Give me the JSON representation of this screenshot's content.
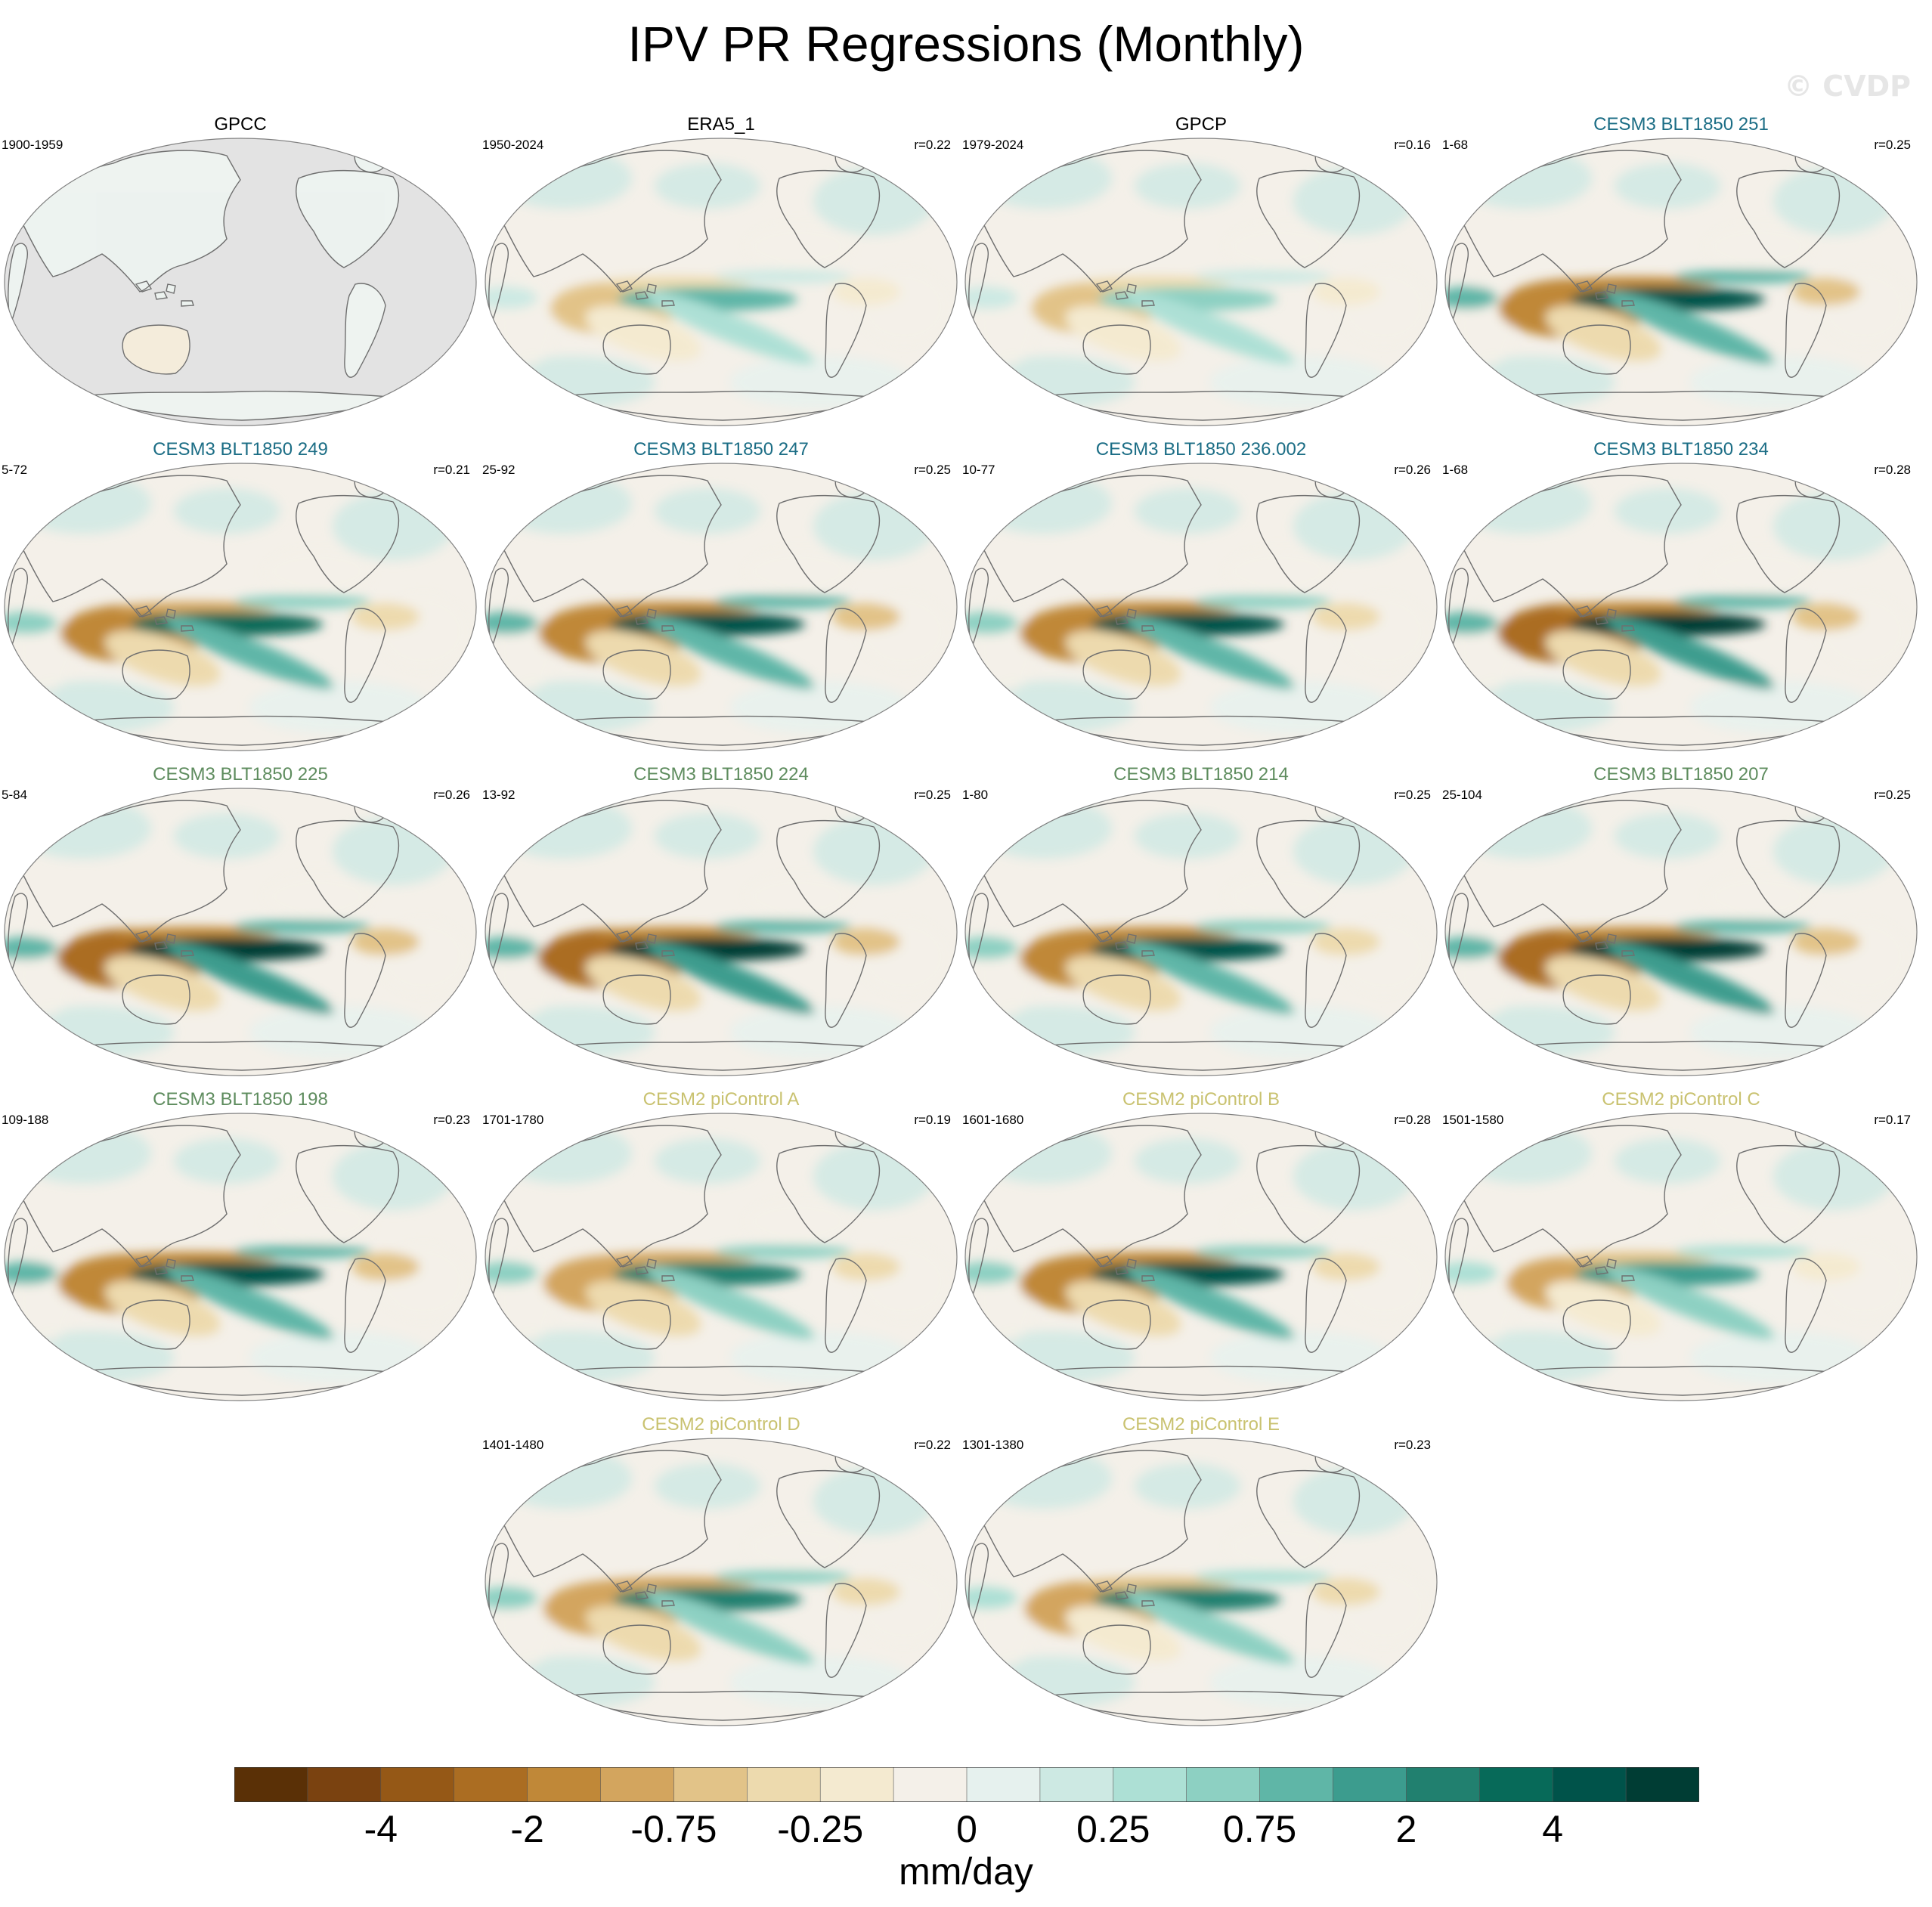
{
  "title": "IPV PR Regressions (Monthly)",
  "watermark": "© CVDP",
  "units": "mm/day",
  "colors": {
    "obs_title": "#000000",
    "cesm3_blue": "#1b6d85",
    "cesm3_green": "#5e8c5e",
    "cesm2_yellow": "#c9c270",
    "land_missing": "#e3e3e3"
  },
  "chart_data": {
    "type": "heatmap",
    "projection": "robinson (Pacific-centered)",
    "variable": "PR regression onto IPV",
    "colorbar": {
      "ticks": [
        "-4",
        "-2",
        "-0.75",
        "-0.25",
        "0",
        "0.25",
        "0.75",
        "2",
        "4"
      ],
      "levels": [
        -5,
        -4,
        -3,
        -2,
        -1,
        -0.75,
        -0.5,
        -0.25,
        -0.1,
        0,
        0.1,
        0.25,
        0.5,
        0.75,
        1,
        2,
        3,
        4,
        5
      ],
      "colors": [
        "#5a3006",
        "#7a4210",
        "#955816",
        "#ab6d22",
        "#c08838",
        "#d3a55e",
        "#e2c388",
        "#eddaae",
        "#f4ead0",
        "#f4f0e9",
        "#e6f1ee",
        "#cde9e3",
        "#ade0d5",
        "#8dd0c2",
        "#5fb6a7",
        "#3c9c8e",
        "#21806f",
        "#076a59",
        "#00534a",
        "#003d34"
      ]
    },
    "panels": [
      {
        "title": "GPCC",
        "years": "1900-1959",
        "r": "",
        "group": "obs",
        "intensity": 0.25,
        "land_only": true
      },
      {
        "title": "ERA5_1",
        "years": "1950-2024",
        "r": "r=0.22",
        "group": "obs",
        "intensity": 0.45
      },
      {
        "title": "GPCP",
        "years": "1979-2024",
        "r": "r=0.16",
        "group": "obs",
        "intensity": 0.4
      },
      {
        "title": "CESM3 BLT1850 251",
        "years": "1-68",
        "r": "r=0.25",
        "group": "cesm3_blue",
        "intensity": 0.95
      },
      {
        "title": "CESM3 BLT1850 249",
        "years": "5-72",
        "r": "r=0.21",
        "group": "cesm3_blue",
        "intensity": 0.85
      },
      {
        "title": "CESM3 BLT1850 247",
        "years": "25-92",
        "r": "r=0.25",
        "group": "cesm3_blue",
        "intensity": 0.95
      },
      {
        "title": "CESM3 BLT1850 236.002",
        "years": "10-77",
        "r": "r=0.26",
        "group": "cesm3_blue",
        "intensity": 0.9
      },
      {
        "title": "CESM3 BLT1850 234",
        "years": "1-68",
        "r": "r=0.28",
        "group": "cesm3_blue",
        "intensity": 1.0
      },
      {
        "title": "CESM3 BLT1850 225",
        "years": "5-84",
        "r": "r=0.26",
        "group": "cesm3_green",
        "intensity": 1.0
      },
      {
        "title": "CESM3 BLT1850 224",
        "years": "13-92",
        "r": "r=0.25",
        "group": "cesm3_green",
        "intensity": 1.0
      },
      {
        "title": "CESM3 BLT1850 214",
        "years": "1-80",
        "r": "r=0.25",
        "group": "cesm3_green",
        "intensity": 0.9
      },
      {
        "title": "CESM3 BLT1850 207",
        "years": "25-104",
        "r": "r=0.25",
        "group": "cesm3_green",
        "intensity": 1.0
      },
      {
        "title": "CESM3 BLT1850 198",
        "years": "109-188",
        "r": "r=0.23",
        "group": "cesm3_green",
        "intensity": 0.95
      },
      {
        "title": "CESM2 piControl A",
        "years": "1701-1780",
        "r": "r=0.19",
        "group": "cesm2_yellow",
        "intensity": 0.75
      },
      {
        "title": "CESM2 piControl B",
        "years": "1601-1680",
        "r": "r=0.28",
        "group": "cesm2_yellow",
        "intensity": 0.9
      },
      {
        "title": "CESM2 piControl C",
        "years": "1501-1580",
        "r": "r=0.17",
        "group": "cesm2_yellow",
        "intensity": 0.6
      },
      {
        "title": "CESM2 piControl D",
        "years": "1401-1480",
        "r": "r=0.22",
        "group": "cesm2_yellow",
        "intensity": 0.75
      },
      {
        "title": "CESM2 piControl E",
        "years": "1301-1380",
        "r": "r=0.23",
        "group": "cesm2_yellow",
        "intensity": 0.7
      }
    ]
  }
}
